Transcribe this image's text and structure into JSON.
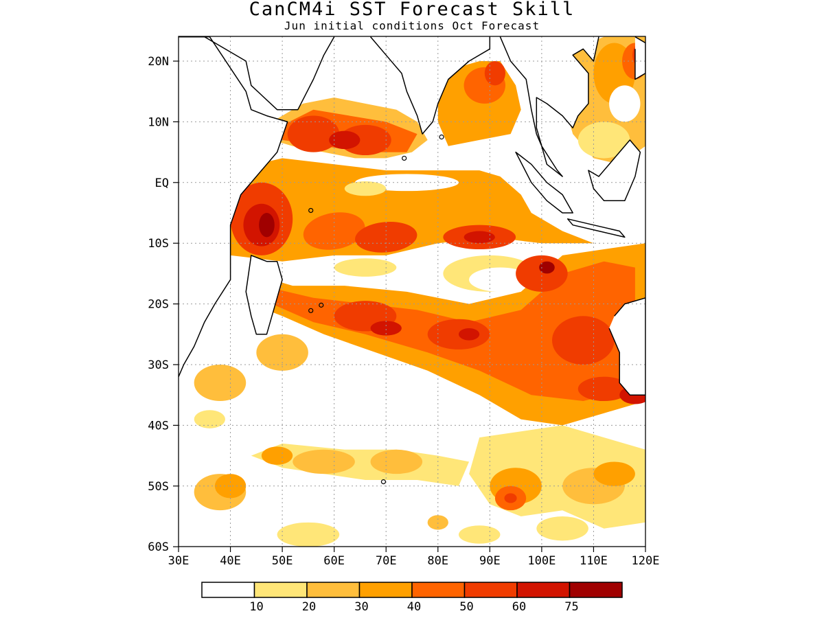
{
  "title": "CanCM4i SST Forecast Skill",
  "subtitle": "Jun initial conditions  Oct Forecast",
  "map": {
    "lon_labels": [
      "30E",
      "40E",
      "50E",
      "60E",
      "70E",
      "80E",
      "90E",
      "100E",
      "110E",
      "120E"
    ],
    "lat_labels": [
      "20N",
      "10N",
      "EQ",
      "10S",
      "20S",
      "30S",
      "40S",
      "50S",
      "60S"
    ],
    "lon_range": [
      30,
      120
    ],
    "lat_range": [
      -60,
      24
    ],
    "grid": "dotted"
  },
  "legend": {
    "bins": [
      {
        "color": "#ffffff"
      },
      {
        "color": "#ffe678",
        "label": "10"
      },
      {
        "color": "#ffbe3c",
        "label": "20"
      },
      {
        "color": "#ffa000",
        "label": "30"
      },
      {
        "color": "#ff6400",
        "label": "40"
      },
      {
        "color": "#f03c00",
        "label": "50"
      },
      {
        "color": "#d21400",
        "label": "60"
      },
      {
        "color": "#a00000",
        "label": "75"
      }
    ]
  }
}
